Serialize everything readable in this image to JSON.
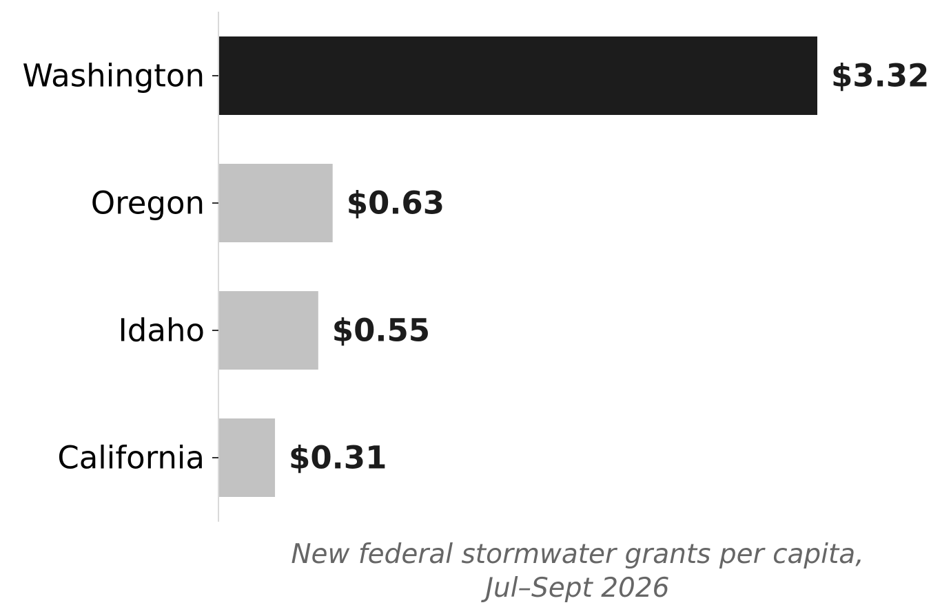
{
  "chart_data": {
    "type": "bar",
    "orientation": "horizontal",
    "categories": [
      "Washington",
      "Oregon",
      "Idaho",
      "California"
    ],
    "values": [
      3.32,
      0.63,
      0.55,
      0.31
    ],
    "value_labels": [
      "$3.32",
      "$0.63",
      "$0.55",
      "$0.31"
    ],
    "xlabel": "New federal stormwater grants per capita, Jul–Sept 2026",
    "xlabel_lines": [
      "New federal stormwater grants per capita,",
      "Jul–Sept 2026"
    ],
    "ylabel": "",
    "xlim": [
      0,
      3.32
    ],
    "grid": false,
    "highlight_category": "Washington",
    "colors": {
      "highlight": "#1c1c1c",
      "default": "#c2c2c2",
      "axis": "#d9d9d9",
      "label": "#1c1c1c",
      "axis_title": "#666666"
    }
  }
}
